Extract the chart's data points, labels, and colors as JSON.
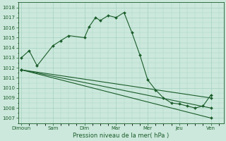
{
  "xlabel": "Pression niveau de la mer( hPa )",
  "background_color": "#cce8dc",
  "grid_color": "#99ccbb",
  "line_color": "#1a5c2a",
  "ylim": [
    1006.5,
    1018.5
  ],
  "yticks": [
    1007,
    1008,
    1009,
    1010,
    1011,
    1012,
    1013,
    1014,
    1015,
    1016,
    1017,
    1018
  ],
  "x_labels": [
    "Dimoun",
    "Sam",
    "Dim",
    "Mar",
    "Mer",
    "Jeu",
    "Ven"
  ],
  "x_positions": [
    0,
    2,
    4,
    6,
    8,
    10,
    12
  ],
  "xlim": [
    -0.2,
    12.8
  ],
  "lines": [
    {
      "x": [
        0,
        0.5,
        1,
        2,
        2.5,
        3,
        4,
        4.3,
        4.7,
        5,
        5.5,
        6,
        6.5,
        7,
        7.5,
        8,
        8.5,
        9,
        9.5,
        10,
        10.5,
        11,
        11.5,
        12
      ],
      "y": [
        1013.0,
        1013.7,
        1012.2,
        1014.2,
        1014.7,
        1015.2,
        1015.0,
        1016.1,
        1017.0,
        1016.7,
        1017.2,
        1017.0,
        1017.5,
        1015.5,
        1013.3,
        1010.8,
        1009.8,
        1009.0,
        1008.5,
        1008.4,
        1008.2,
        1008.0,
        1008.2,
        1009.3
      ]
    },
    {
      "x": [
        0,
        12
      ],
      "y": [
        1011.8,
        1009.0
      ]
    },
    {
      "x": [
        0,
        12
      ],
      "y": [
        1011.8,
        1008.0
      ]
    },
    {
      "x": [
        0,
        12
      ],
      "y": [
        1011.8,
        1007.0
      ]
    }
  ],
  "marker": "D",
  "marker_size": 2.0,
  "line_width": 0.8,
  "tick_fontsize": 5.0,
  "xlabel_fontsize": 6.0
}
